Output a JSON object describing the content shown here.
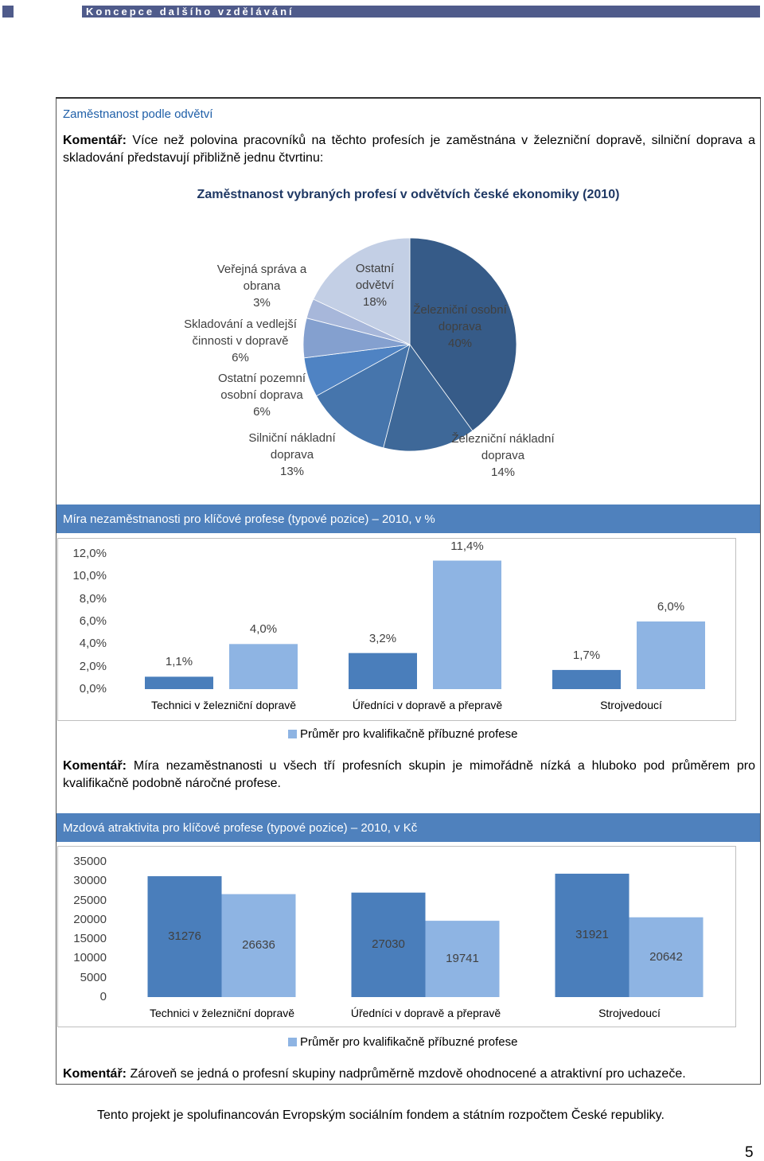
{
  "header": {
    "title": "Koncepce dalšího vzdělávání"
  },
  "section": {
    "title": "Zaměstnanost podle odvětví"
  },
  "comments": [
    {
      "label": "Komentář:",
      "text": "Více než polovina pracovníků na těchto profesích je zaměstnána v železniční dopravě, silniční doprava a skladování představují přibližně jednu čtvrtinu:"
    },
    {
      "label": "Komentář:",
      "text": "Míra nezaměstnanosti u všech tří profesních skupin je mimořádně nízká a hluboko pod průměrem pro kvalifikačně podobně náročné profese."
    },
    {
      "label": "Komentář:",
      "text": "Zároveň se jedná o profesní skupiny nadprůměrně mzdově ohodnocené a atraktivní pro uchazeče."
    }
  ],
  "chart_data": [
    {
      "type": "pie",
      "title": "Zaměstnanost vybraných profesí v odvětvích české ekonomiky (2010)",
      "categories": [
        "Železniční osobní doprava",
        "Železniční nákladní doprava",
        "Silniční nákladní doprava",
        "Ostatní pozemní osobní doprava",
        "Skladování a vedlejší činnosti v dopravě",
        "Veřejná správa a obrana",
        "Ostatní odvětví"
      ],
      "values": [
        40,
        14,
        13,
        6,
        6,
        3,
        18
      ],
      "value_labels": [
        "40%",
        "14%",
        "13%",
        "6%",
        "6%",
        "3%",
        "18%"
      ],
      "colors": [
        "#365b88",
        "#3e6898",
        "#4675ac",
        "#4f83c3",
        "#84a0cf",
        "#a7b7da",
        "#c3cfe5"
      ]
    },
    {
      "type": "bar",
      "title": "Míra nezaměstnanosti pro klíčové profese (typové pozice) – 2010, v %",
      "categories": [
        "Technici v železniční dopravě",
        "Úředníci v dopravě a přepravě",
        "Strojvedoucí"
      ],
      "series": [
        {
          "color": "#4a7ebb",
          "values": [
            1.1,
            3.2,
            1.7
          ],
          "value_labels": [
            "1,1%",
            "3,2%",
            "1,7%"
          ]
        },
        {
          "name": "Průměr pro kvalifikačně příbuzné profese",
          "color": "#8eb4e3",
          "values": [
            4.0,
            11.4,
            6.0
          ],
          "value_labels": [
            "4,0%",
            "11,4%",
            "6,0%"
          ]
        }
      ],
      "ylim": [
        0,
        12
      ],
      "yticks": [
        {
          "value": 0,
          "label": "0,0%"
        },
        {
          "value": 2,
          "label": "2,0%"
        },
        {
          "value": 4,
          "label": "4,0%"
        },
        {
          "value": 6,
          "label": "6,0%"
        },
        {
          "value": 8,
          "label": "8,0%"
        },
        {
          "value": 10,
          "label": "10,0%"
        },
        {
          "value": 12,
          "label": "12,0%"
        }
      ],
      "grid": false
    },
    {
      "type": "bar",
      "title": "Mzdová atraktivita pro klíčové profese (typové pozice) – 2010, v Kč",
      "categories": [
        "Technici v železniční dopravě",
        "Úředníci v dopravě a přepravě",
        "Strojvedoucí"
      ],
      "series": [
        {
          "color": "#4a7ebb",
          "values": [
            31276,
            27030,
            31921
          ]
        },
        {
          "name": "Průměr pro kvalifikačně příbuzné profese",
          "color": "#8eb4e3",
          "values": [
            26636,
            19741,
            20642
          ]
        }
      ],
      "ylim": [
        0,
        35000
      ],
      "yticks": [
        0,
        5000,
        10000,
        15000,
        20000,
        25000,
        30000,
        35000
      ],
      "grid": false
    }
  ],
  "footer": {
    "text": "Tento projekt je spolufinancován Evropským sociálním fondem a státním rozpočtem České republiky.",
    "page_number": "5"
  }
}
